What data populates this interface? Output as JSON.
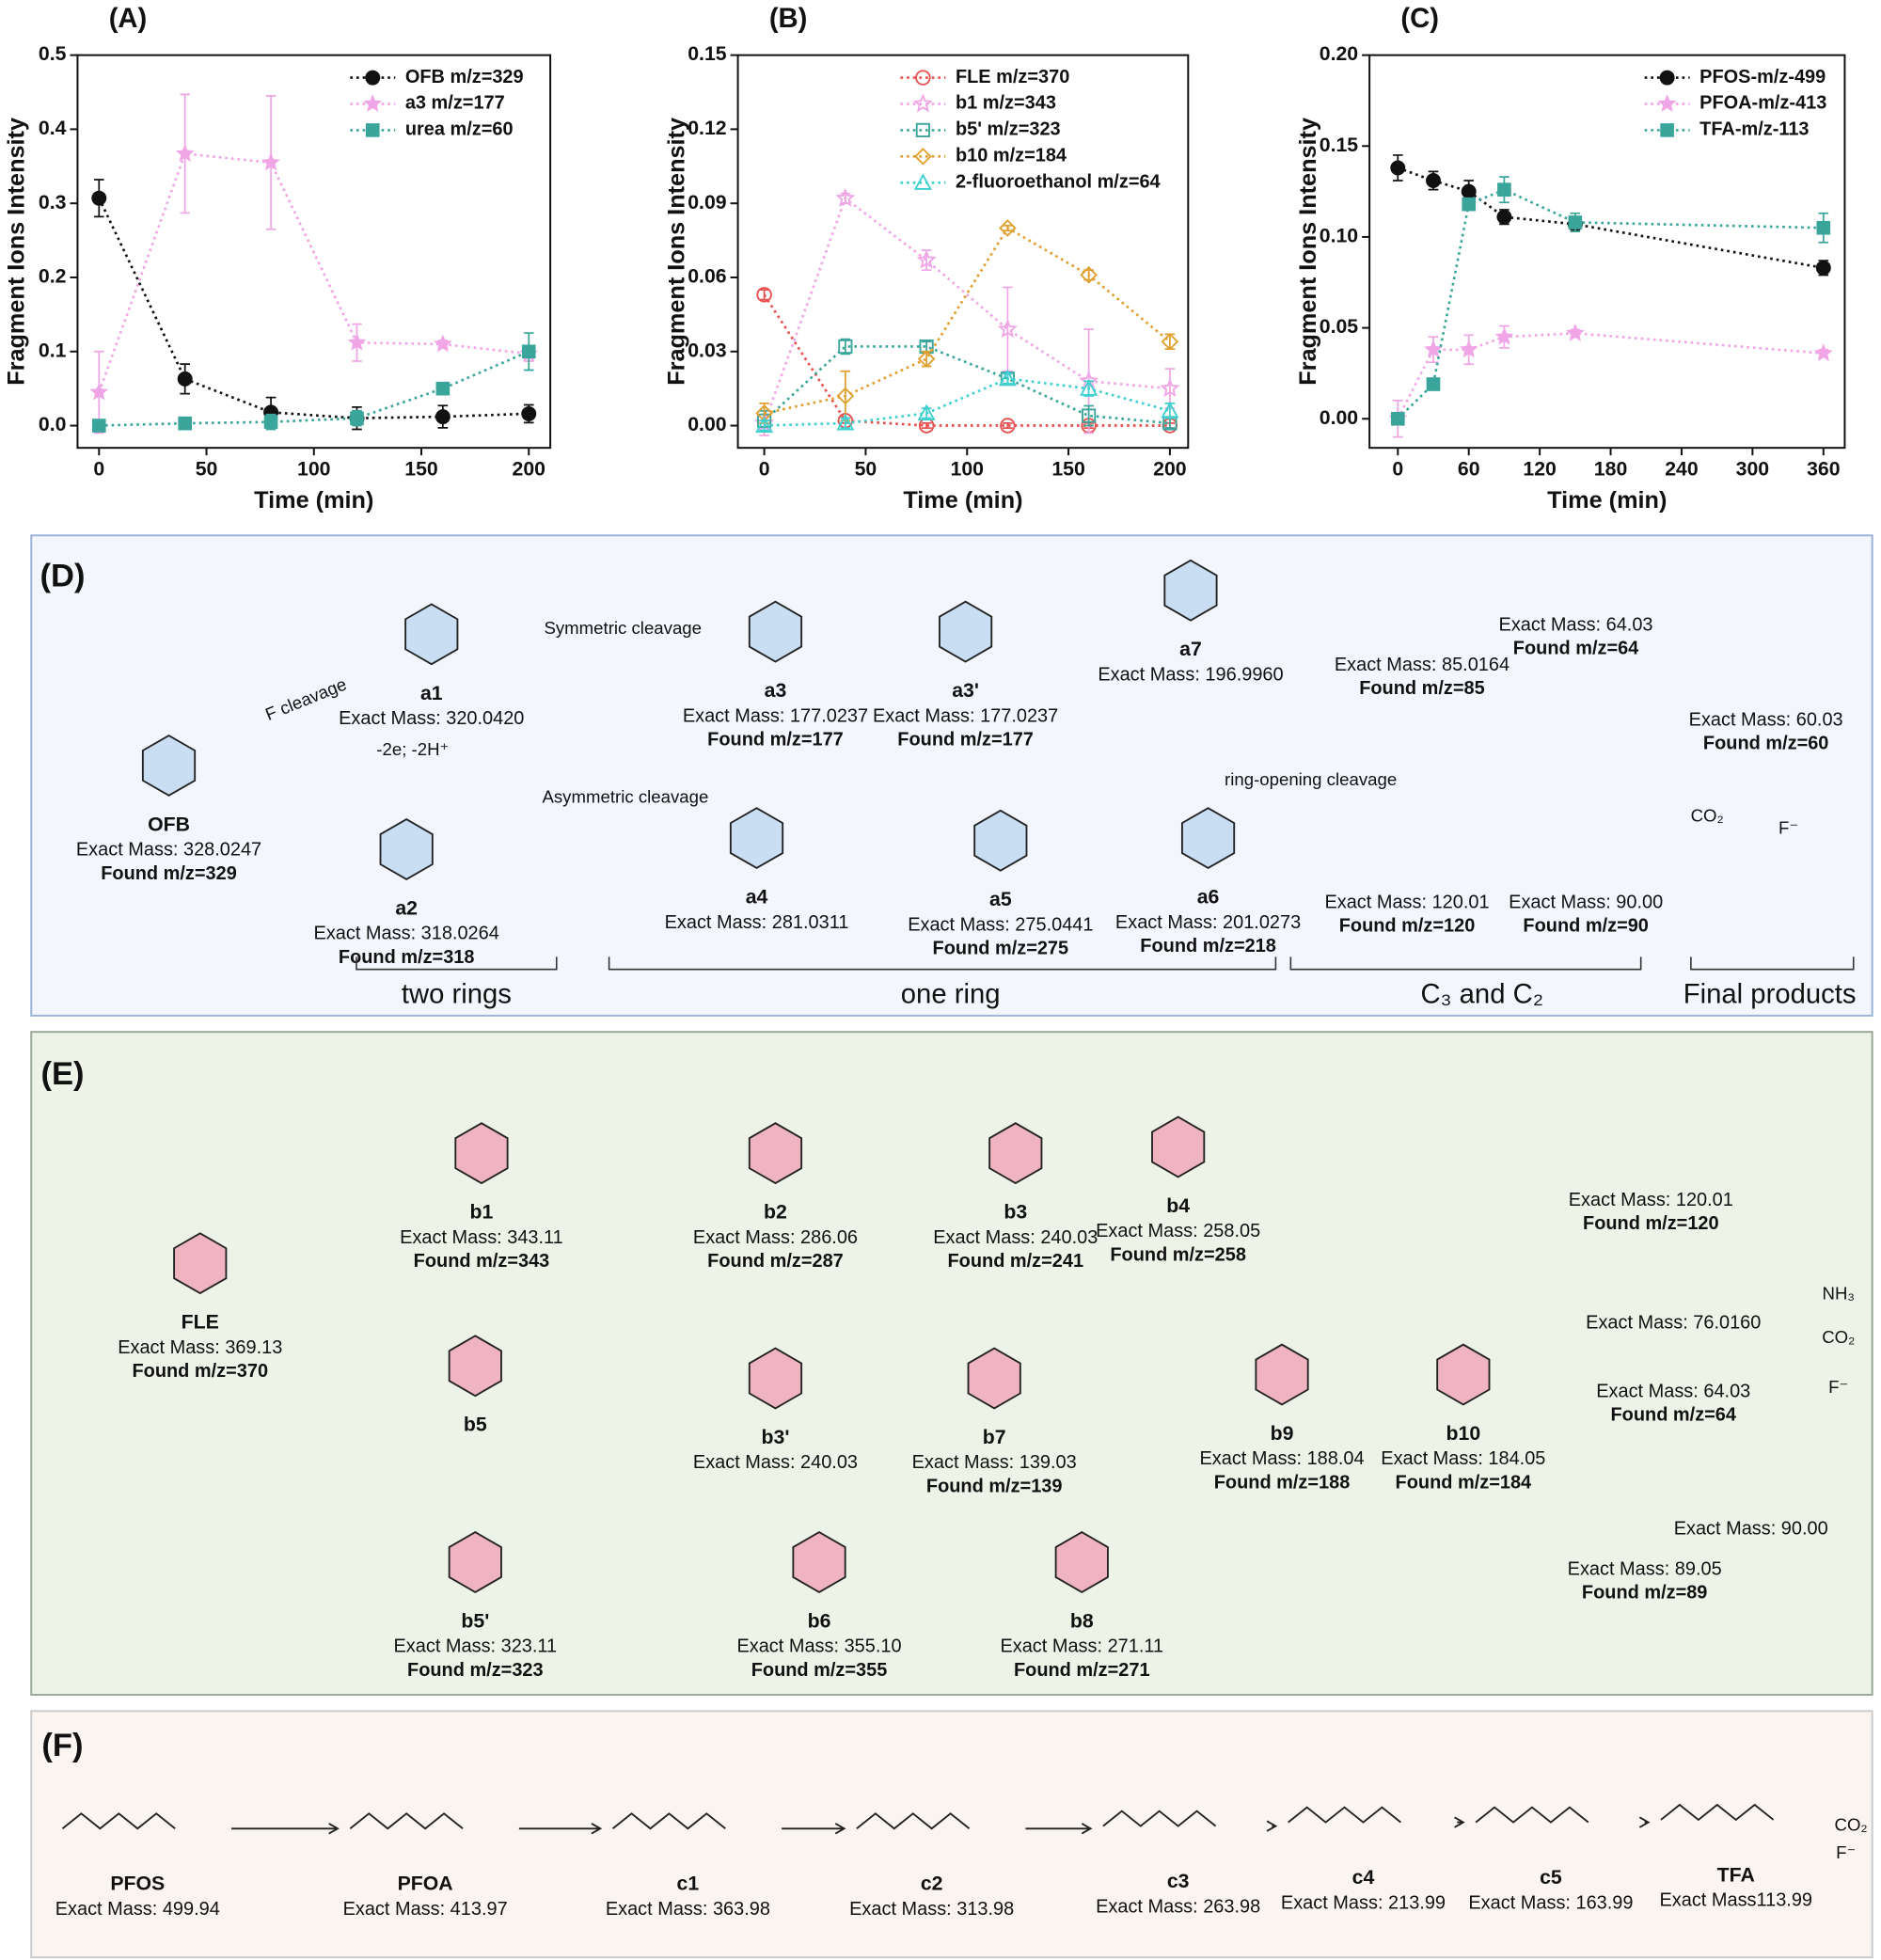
{
  "chart_data": [
    {
      "type": "line",
      "title": "(A)",
      "x_label": "Time (min)",
      "y_label": "Fragment Ions Intensity",
      "x": [
        0,
        40,
        80,
        120,
        160,
        200
      ],
      "xlim": [
        -10,
        210
      ],
      "xticks": [
        0,
        50,
        100,
        150,
        200
      ],
      "ylim": [
        -0.03,
        0.5
      ],
      "yticks": [
        {
          "value": 0,
          "label": "0.0"
        },
        0.1,
        0.2,
        0.3,
        0.4,
        0.5
      ],
      "legend": "upper right",
      "series": [
        {
          "name": "OFB m/z=329",
          "color": "#111111",
          "marker": "circle",
          "values": [
            0.307,
            0.063,
            0.018,
            0.01,
            0.012,
            0.016
          ],
          "errors": [
            0.025,
            0.02,
            0.02,
            0.015,
            0.015,
            0.012
          ]
        },
        {
          "name": "a3 m/z=177",
          "color": "#f0a6e6",
          "marker": "star",
          "values": [
            0.045,
            0.367,
            0.355,
            0.112,
            0.11,
            0.097
          ],
          "errors": [
            0.055,
            0.08,
            0.09,
            0.025,
            0.005,
            0.01
          ]
        },
        {
          "name": "urea m/z=60",
          "color": "#3aa59a",
          "marker": "square",
          "values": [
            0,
            0.003,
            0.005,
            0.01,
            0.05,
            0.1
          ],
          "errors": [
            0.005,
            0.005,
            0.01,
            0.01,
            0.005,
            0.025
          ]
        }
      ]
    },
    {
      "type": "line",
      "title": "(B)",
      "x_label": "Time (min)",
      "y_label": "Fragment Ions Intensity",
      "x": [
        0,
        40,
        80,
        120,
        160,
        200
      ],
      "xlim": [
        -13,
        209
      ],
      "xticks": [
        0,
        50,
        100,
        150,
        200
      ],
      "ylim": [
        -0.009,
        0.15
      ],
      "yticks": [
        {
          "value": 0,
          "label": "0.00"
        },
        0.03,
        0.06,
        0.09,
        0.12,
        0.15
      ],
      "legend": "upper center",
      "series": [
        {
          "name": "FLE m/z=370",
          "color": "#e8504f",
          "marker": "circle",
          "values": [
            0.053,
            0.002,
            0,
            0,
            0,
            0
          ],
          "errors": [
            0.002,
            0.001,
            0.001,
            0.001,
            0.001,
            0.001
          ]
        },
        {
          "name": "b1 m/z=343",
          "color": "#f0a6e6",
          "marker": "star",
          "values": [
            0.001,
            0.092,
            0.067,
            0.039,
            0.018,
            0.015
          ],
          "errors": [
            0.005,
            0.002,
            0.004,
            0.017,
            0.021,
            0.008
          ]
        },
        {
          "name": "b5' m/z=323",
          "color": "#3aa59a",
          "marker": "square",
          "values": [
            0.002,
            0.032,
            0.032,
            0.019,
            0.004,
            0.001
          ],
          "errors": [
            0.004,
            0.003,
            0.002,
            0.002,
            0.004,
            0.002
          ]
        },
        {
          "name": "b10 m/z=184",
          "color": "#e0a030",
          "marker": "diamond",
          "values": [
            0.005,
            0.012,
            0.027,
            0.08,
            0.061,
            0.034
          ],
          "errors": [
            0.004,
            0.01,
            0.003,
            0.001,
            0.002,
            0.003
          ]
        },
        {
          "name": "2-fluoroethanol m/z=64",
          "color": "#40d0d0",
          "marker": "triangle",
          "values": [
            0,
            0.001,
            0.005,
            0.019,
            0.015,
            0.006
          ],
          "errors": [
            0.002,
            0.002,
            0.002,
            0.002,
            0.003,
            0.003
          ]
        }
      ]
    },
    {
      "type": "line",
      "title": "(C)",
      "x_label": "Time (min)",
      "y_label": "Fragment Ions Intensity",
      "x": [
        0,
        30,
        60,
        90,
        150,
        360
      ],
      "xlim": [
        -24,
        378
      ],
      "xticks": [
        0,
        60,
        120,
        180,
        240,
        300,
        360
      ],
      "ylim": [
        -0.016,
        0.2
      ],
      "yticks": [
        {
          "value": 0,
          "label": "0.00"
        },
        {
          "value": 0.05,
          "label": "0.05"
        },
        {
          "value": 0.1,
          "label": "0.10"
        },
        0.15,
        {
          "value": 0.2,
          "label": "0.20"
        }
      ],
      "legend": "upper right",
      "series": [
        {
          "name": "PFOS-m/z-499",
          "color": "#111111",
          "marker": "circle",
          "values": [
            0.138,
            0.131,
            0.125,
            0.111,
            0.107,
            0.083
          ],
          "errors": [
            0.007,
            0.005,
            0.006,
            0.004,
            0.003,
            0.004
          ]
        },
        {
          "name": "PFOA-m/z-413",
          "color": "#f0a6e6",
          "marker": "star",
          "values": [
            0,
            0.038,
            0.038,
            0.045,
            0.047,
            0.036
          ],
          "errors": [
            0.01,
            0.007,
            0.008,
            0.006,
            0.002,
            0.002
          ]
        },
        {
          "name": "TFA-m/z-113",
          "color": "#3aa59a",
          "marker": "square",
          "values": [
            0,
            0.019,
            0.118,
            0.126,
            0.108,
            0.105
          ],
          "errors": [
            0.003,
            0.002,
            0.003,
            0.007,
            0.005,
            0.008
          ]
        }
      ]
    }
  ],
  "panels": [
    {
      "label": "(D)",
      "compounds": [
        {
          "name": "OFB",
          "exact_mass": "Exact Mass: 328.0247",
          "found": "Found m/z=329"
        },
        {
          "name": "a1",
          "exact_mass": "Exact Mass: 320.0420"
        },
        {
          "name": "a2",
          "exact_mass": "Exact Mass: 318.0264",
          "found": "Found m/z=318"
        },
        {
          "name": "a3",
          "exact_mass": "Exact Mass: 177.0237",
          "found": "Found m/z=177"
        },
        {
          "name": "a3'",
          "exact_mass": "Exact Mass: 177.0237",
          "found": "Found m/z=177"
        },
        {
          "name": "a7",
          "exact_mass": "Exact Mass: 196.9960"
        },
        {
          "name": "a4",
          "exact_mass": "Exact Mass: 281.0311"
        },
        {
          "name": "a5",
          "exact_mass": "Exact Mass: 275.0441",
          "found": "Found m/z=275"
        },
        {
          "name": "a6",
          "exact_mass": "Exact Mass: 201.0273",
          "found": "Found m/z=218"
        },
        {
          "exact_mass": "Exact Mass: 85.0164",
          "found": "Found m/z=85"
        },
        {
          "exact_mass": "Exact Mass: 64.03",
          "found": "Found m/z=64"
        },
        {
          "exact_mass": "Exact Mass: 60.03",
          "found": "Found m/z=60"
        },
        {
          "exact_mass": "Exact Mass: 120.01",
          "found": "Found m/z=120"
        },
        {
          "exact_mass": "Exact Mass: 90.00",
          "found": "Found m/z=90"
        }
      ],
      "annotations": [
        "F cleavage",
        "-2e; -2H⁺",
        "Symmetric cleavage",
        "Asymmetric cleavage",
        "ring-opening cleavage",
        "CO₂",
        "F⁻"
      ],
      "groups": [
        "two rings",
        "one ring",
        "C₃ and C₂",
        "Final products"
      ]
    },
    {
      "label": "(E)",
      "compounds": [
        {
          "name": "FLE",
          "exact_mass": "Exact Mass: 369.13",
          "found": "Found m/z=370"
        },
        {
          "name": "b1",
          "exact_mass": "Exact Mass: 343.11",
          "found": "Found m/z=343"
        },
        {
          "name": "b2",
          "exact_mass": "Exact Mass: 286.06",
          "found": "Found m/z=287"
        },
        {
          "name": "b3",
          "exact_mass": "Exact Mass: 240.03",
          "found": "Found m/z=241"
        },
        {
          "name": "b4",
          "exact_mass": "Exact Mass: 258.05",
          "found": "Found m/z=258"
        },
        {
          "name": "b5"
        },
        {
          "name": "b3'",
          "exact_mass": "Exact Mass: 240.03"
        },
        {
          "name": "b7",
          "exact_mass": "Exact Mass: 139.03",
          "found": "Found m/z=139"
        },
        {
          "name": "b5'",
          "exact_mass": "Exact Mass: 323.11",
          "found": "Found m/z=323"
        },
        {
          "name": "b6",
          "exact_mass": "Exact Mass: 355.10",
          "found": "Found m/z=355"
        },
        {
          "name": "b8",
          "exact_mass": "Exact Mass: 271.11",
          "found": "Found m/z=271"
        },
        {
          "name": "b9",
          "exact_mass": "Exact Mass: 188.04",
          "found": "Found m/z=188"
        },
        {
          "name": "b10",
          "exact_mass": "Exact Mass: 184.05",
          "found": "Found m/z=184"
        },
        {
          "exact_mass": "Exact Mass: 120.01",
          "found": "Found m/z=120"
        },
        {
          "exact_mass": "Exact Mass: 76.0160"
        },
        {
          "exact_mass": "Exact Mass: 64.03",
          "found": "Found m/z=64"
        },
        {
          "exact_mass": "Exact Mass: 90.00"
        },
        {
          "exact_mass": "Exact Mass: 89.05",
          "found": "Found m/z=89"
        }
      ],
      "annotations": [
        "NH₃",
        "CO₂",
        "F⁻"
      ]
    },
    {
      "label": "(F)",
      "compounds": [
        {
          "name": "PFOS",
          "exact_mass": "Exact Mass: 499.94"
        },
        {
          "name": "PFOA",
          "exact_mass": "Exact Mass: 413.97"
        },
        {
          "name": "c1",
          "exact_mass": "Exact Mass: 363.98"
        },
        {
          "name": "c2",
          "exact_mass": "Exact Mass: 313.98"
        },
        {
          "name": "c3",
          "exact_mass": "Exact Mass: 263.98"
        },
        {
          "name": "c4",
          "exact_mass": "Exact Mass: 213.99"
        },
        {
          "name": "c5",
          "exact_mass": "Exact Mass: 163.99"
        },
        {
          "name": "TFA",
          "exact_mass": "Exact Mass113.99"
        }
      ],
      "annotations": [
        "CO₂",
        "F⁻"
      ]
    }
  ]
}
